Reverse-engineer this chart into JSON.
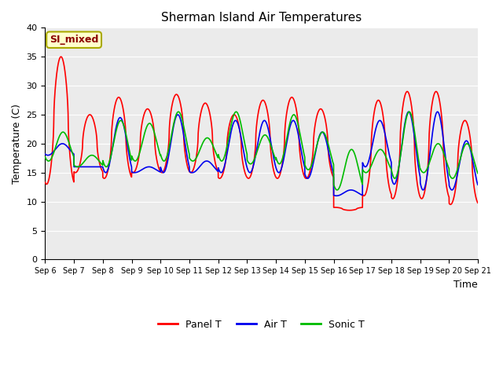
{
  "title": "Sherman Island Air Temperatures",
  "xlabel": "Time",
  "ylabel": "Temperature (C)",
  "annotation_text": "SI_mixed",
  "annotation_color": "#8B0000",
  "annotation_bg": "#FFFFCC",
  "annotation_border": "#AAAA00",
  "xlim_start": 0,
  "xlim_end": 15,
  "ylim": [
    0,
    40
  ],
  "yticks": [
    0,
    5,
    10,
    15,
    20,
    25,
    30,
    35,
    40
  ],
  "xtick_labels": [
    "Sep 6",
    "Sep 7",
    "Sep 8",
    "Sep 9",
    "Sep 10",
    "Sep 11",
    "Sep 12",
    "Sep 13",
    "Sep 14",
    "Sep 15",
    "Sep 16",
    "Sep 17",
    "Sep 18",
    "Sep 19",
    "Sep 20",
    "Sep 21"
  ],
  "panel_color": "#FF0000",
  "air_color": "#0000EE",
  "sonic_color": "#00BB00",
  "bg_color": "#EBEBEB",
  "grid_color": "#FFFFFF",
  "line_width": 1.2,
  "legend_labels": [
    "Panel T",
    "Air T",
    "Sonic T"
  ],
  "num_days": 15,
  "panel_peaks": [
    35,
    25,
    28,
    26,
    28.5,
    27,
    25,
    27.5,
    28,
    26,
    8.5,
    27.5,
    29,
    29,
    24
  ],
  "panel_troughs": [
    13,
    15,
    14,
    15,
    15,
    15,
    14,
    14,
    14,
    14,
    9,
    11,
    10.5,
    10.5,
    9.5
  ],
  "air_peaks": [
    20,
    16,
    24.5,
    16,
    25,
    17,
    24,
    24,
    24,
    22,
    12,
    24,
    25.5,
    25.5,
    20.5
  ],
  "air_troughs": [
    18,
    16,
    15,
    15,
    15,
    15,
    15,
    15,
    15,
    14,
    11,
    16,
    13,
    12,
    12
  ],
  "sonic_peaks": [
    22,
    18,
    24,
    23.5,
    25.5,
    21,
    25.5,
    21.5,
    25,
    22,
    19,
    19,
    25.5,
    20,
    20
  ],
  "sonic_troughs": [
    17,
    16,
    16,
    17,
    17,
    17,
    17,
    16.5,
    16.5,
    15.5,
    12,
    15,
    14,
    15,
    14
  ],
  "panel_peak_phase": 0.55,
  "panel_trough_phase": 0.02,
  "air_peak_phase": 0.6,
  "air_trough_phase": 0.05,
  "sonic_peak_phase": 0.62,
  "sonic_trough_phase": 0.07
}
